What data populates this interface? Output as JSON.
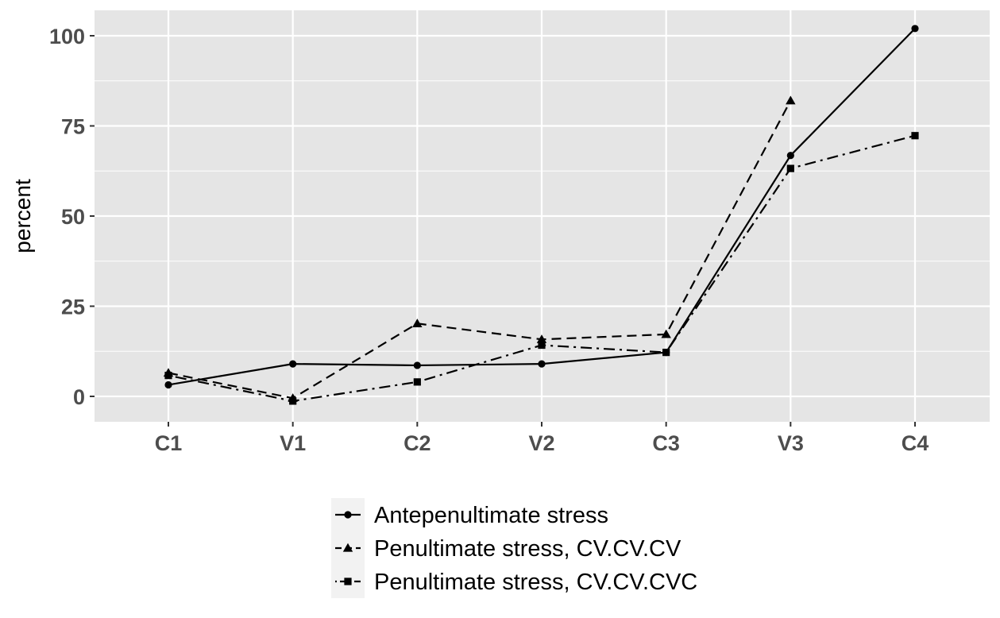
{
  "chart_data": {
    "type": "line",
    "title": "",
    "xlabel": "",
    "ylabel": "percent",
    "categories": [
      "C1",
      "V1",
      "C2",
      "V2",
      "C3",
      "V3",
      "C4"
    ],
    "ylim": [
      -7,
      107
    ],
    "yticks": [
      0,
      25,
      50,
      75,
      100
    ],
    "grid": true,
    "legend_position": "bottom",
    "series": [
      {
        "name": "Antepenultimate stress",
        "linetype": "solid",
        "marker": "circle",
        "values": [
          3.2,
          9,
          8.6,
          9,
          12.2,
          66.8,
          102
        ]
      },
      {
        "name": "Penultimate stress, CV.CV.CV",
        "linetype": "dashed",
        "marker": "triangle",
        "values": [
          6.5,
          -0.5,
          20.2,
          15.8,
          17.2,
          82,
          null
        ]
      },
      {
        "name": "Penultimate stress, CV.CV.CVC",
        "linetype": "dotdash",
        "marker": "square",
        "values": [
          5.8,
          -1.3,
          4,
          14.2,
          12.2,
          63.2,
          72.3
        ]
      }
    ],
    "colors": {
      "panel_background": "#e5e5e5",
      "grid": "#ffffff",
      "line": "#000000",
      "tick_text": "#4d4d4d",
      "legend_key_background": "#f2f2f2"
    }
  }
}
